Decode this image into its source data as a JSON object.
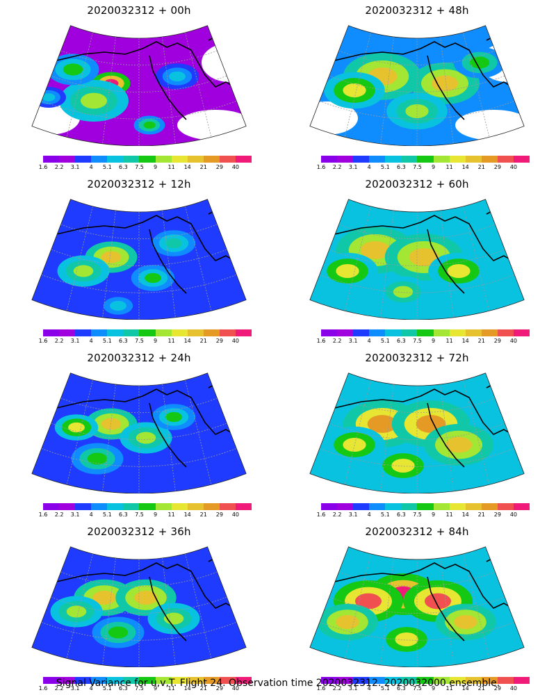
{
  "panels": [
    {
      "title": "2020032312 + 00h",
      "intensity": 0.15,
      "blobs": [
        [
          150,
          90,
          22,
          0.95
        ],
        [
          125,
          115,
          40,
          0.55
        ],
        [
          95,
          70,
          30,
          0.45
        ],
        [
          205,
          150,
          18,
          0.5
        ],
        [
          60,
          110,
          20,
          0.35
        ],
        [
          245,
          80,
          25,
          0.35
        ]
      ]
    },
    {
      "title": "2020032312 + 48h",
      "intensity": 0.55,
      "blobs": [
        [
          140,
          80,
          45,
          0.75
        ],
        [
          100,
          100,
          35,
          0.6
        ],
        [
          230,
          90,
          40,
          0.7
        ],
        [
          190,
          130,
          35,
          0.55
        ],
        [
          280,
          60,
          30,
          0.5
        ]
      ]
    },
    {
      "title": "2020032312 + 12h",
      "intensity": 0.25,
      "blobs": [
        [
          150,
          90,
          30,
          0.7
        ],
        [
          110,
          110,
          30,
          0.55
        ],
        [
          210,
          120,
          25,
          0.45
        ],
        [
          240,
          70,
          25,
          0.4
        ],
        [
          160,
          160,
          25,
          0.35
        ]
      ]
    },
    {
      "title": "2020032312 + 60h",
      "intensity": 0.6,
      "blobs": [
        [
          130,
          80,
          45,
          0.75
        ],
        [
          200,
          90,
          45,
          0.75
        ],
        [
          90,
          110,
          35,
          0.6
        ],
        [
          250,
          110,
          35,
          0.65
        ],
        [
          170,
          140,
          30,
          0.55
        ]
      ]
    },
    {
      "title": "2020032312 + 24h",
      "intensity": 0.3,
      "blobs": [
        [
          150,
          80,
          30,
          0.7
        ],
        [
          100,
          85,
          25,
          0.6
        ],
        [
          200,
          100,
          30,
          0.55
        ],
        [
          130,
          130,
          30,
          0.5
        ],
        [
          240,
          70,
          25,
          0.45
        ]
      ]
    },
    {
      "title": "2020032312 + 72h",
      "intensity": 0.65,
      "blobs": [
        [
          140,
          80,
          45,
          0.8
        ],
        [
          210,
          80,
          45,
          0.8
        ],
        [
          100,
          110,
          35,
          0.65
        ],
        [
          250,
          110,
          40,
          0.7
        ],
        [
          170,
          140,
          35,
          0.6
        ]
      ]
    },
    {
      "title": "2020032312 + 36h",
      "intensity": 0.4,
      "blobs": [
        [
          140,
          80,
          35,
          0.72
        ],
        [
          200,
          80,
          35,
          0.7
        ],
        [
          100,
          100,
          30,
          0.55
        ],
        [
          240,
          110,
          30,
          0.55
        ],
        [
          160,
          130,
          30,
          0.5
        ]
      ]
    },
    {
      "title": "2020032312 + 84h",
      "intensity": 0.7,
      "blobs": [
        [
          170,
          75,
          40,
          0.92
        ],
        [
          120,
          85,
          40,
          0.85
        ],
        [
          220,
          85,
          40,
          0.85
        ],
        [
          90,
          115,
          35,
          0.7
        ],
        [
          260,
          115,
          35,
          0.72
        ],
        [
          175,
          140,
          35,
          0.65
        ]
      ]
    }
  ],
  "colorbar": {
    "labels": [
      "1.6",
      "2.2",
      "3.1",
      "4",
      "5.1",
      "6.3",
      "7.5",
      "9",
      "11",
      "14",
      "21",
      "29",
      "40"
    ],
    "colors": [
      "#8a00e8",
      "#a000dd",
      "#1f3bff",
      "#0f8dff",
      "#09c2e0",
      "#10c8a8",
      "#14c814",
      "#a3e633",
      "#e6e633",
      "#e6c22e",
      "#e69a26",
      "#f05050",
      "#f01a78"
    ]
  },
  "footer": "Signal Variance for u,v,T. Flight 24. Observation time 2020032312. 2020032000 ensemble."
}
